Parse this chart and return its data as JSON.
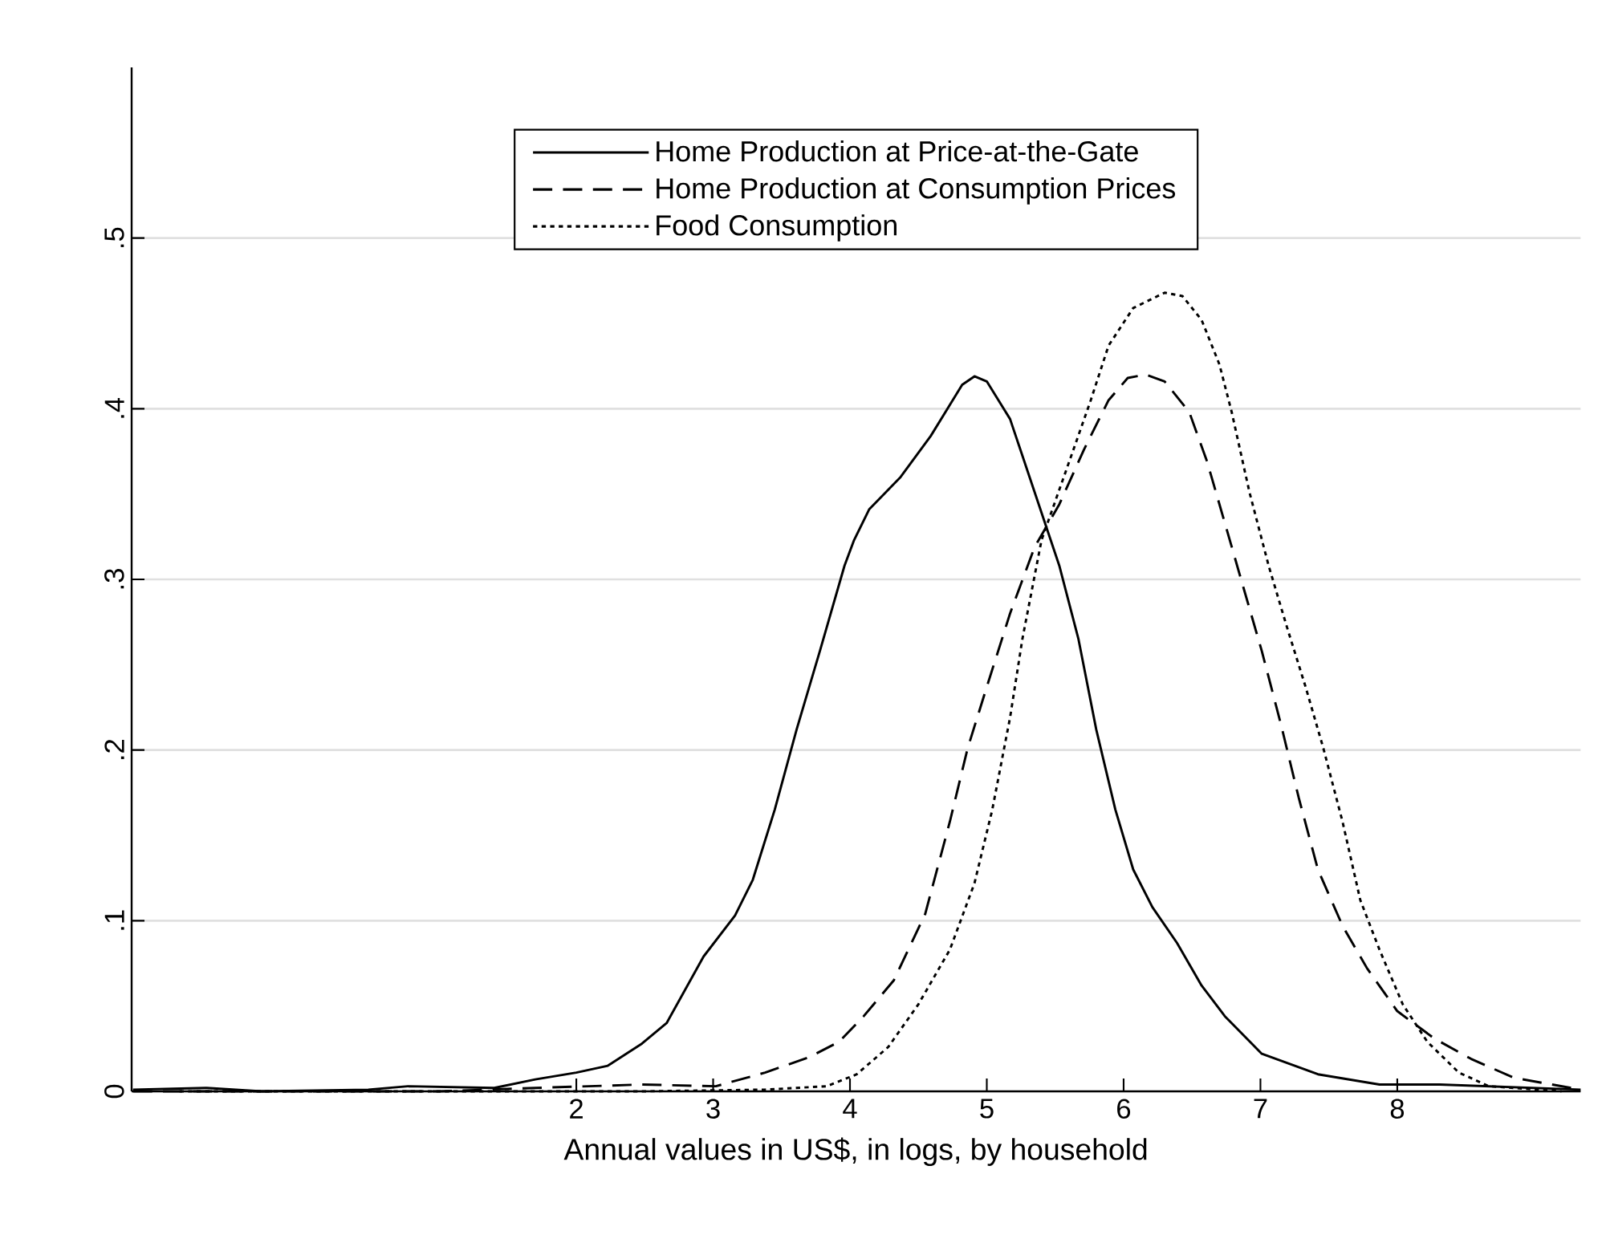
{
  "chart_data": {
    "type": "line",
    "xlabel": "Annual values in US$, in logs, by household",
    "xlim": [
      -1.25,
      9.34
    ],
    "xticks": [
      2,
      3,
      4,
      5,
      6,
      7,
      8
    ],
    "ylim": [
      0,
      0.6
    ],
    "yticks": [
      0,
      {
        "value": 0.1,
        "label": ".1"
      },
      {
        "value": 0.2,
        "label": ".2"
      },
      {
        "value": 0.3,
        "label": ".3"
      },
      {
        "value": 0.4,
        "label": ".4"
      },
      {
        "value": 0.5,
        "label": ".5"
      }
    ],
    "grid": "y",
    "legend": "top",
    "marker": "none",
    "series": [
      {
        "name": "Home Production at Price-at-the-Gate",
        "color": "#000000",
        "line_style": "solid",
        "x": [
          -1.24,
          -0.7,
          -0.3,
          0.48,
          0.77,
          1.4,
          1.7,
          2.0,
          2.23,
          2.48,
          2.66,
          2.93,
          3.16,
          3.29,
          3.45,
          3.61,
          3.78,
          3.96,
          4.03,
          4.14,
          4.37,
          4.59,
          4.82,
          4.91,
          5.0,
          5.17,
          5.35,
          5.53,
          5.67,
          5.8,
          5.94,
          6.07,
          6.21,
          6.39,
          6.57,
          6.74,
          7.01,
          7.42,
          7.87,
          8.31,
          9.34
        ],
        "values": [
          0.001,
          0.002,
          0.0,
          0.001,
          0.003,
          0.002,
          0.007,
          0.011,
          0.015,
          0.028,
          0.04,
          0.079,
          0.103,
          0.124,
          0.165,
          0.212,
          0.258,
          0.308,
          0.323,
          0.341,
          0.36,
          0.384,
          0.414,
          0.419,
          0.416,
          0.394,
          0.351,
          0.308,
          0.265,
          0.212,
          0.165,
          0.13,
          0.108,
          0.087,
          0.062,
          0.044,
          0.022,
          0.01,
          0.004,
          0.004,
          0.001
        ]
      },
      {
        "name": "Home Production at Consumption Prices",
        "color": "#000000",
        "line_style": "dashed",
        "x": [
          -1.24,
          1.0,
          1.7,
          2.48,
          3.02,
          3.38,
          3.7,
          3.92,
          4.1,
          4.32,
          4.55,
          4.73,
          4.86,
          5.0,
          5.17,
          5.35,
          5.53,
          5.71,
          5.89,
          6.03,
          6.16,
          6.3,
          6.48,
          6.61,
          6.74,
          6.88,
          7.01,
          7.15,
          7.28,
          7.42,
          7.6,
          7.78,
          8.0,
          8.27,
          8.54,
          8.85,
          9.34
        ],
        "values": [
          0.0,
          0.0,
          0.002,
          0.004,
          0.003,
          0.011,
          0.02,
          0.029,
          0.044,
          0.065,
          0.104,
          0.158,
          0.201,
          0.237,
          0.28,
          0.319,
          0.344,
          0.376,
          0.405,
          0.418,
          0.42,
          0.416,
          0.398,
          0.369,
          0.333,
          0.294,
          0.258,
          0.215,
          0.172,
          0.13,
          0.097,
          0.072,
          0.047,
          0.031,
          0.019,
          0.008,
          0.001
        ]
      },
      {
        "name": "Food Consumption",
        "color": "#000000",
        "line_style": "dotted",
        "x": [
          -0.9,
          2.48,
          3.38,
          3.83,
          4.05,
          4.28,
          4.5,
          4.73,
          4.91,
          5.04,
          5.17,
          5.26,
          5.4,
          5.62,
          5.76,
          5.89,
          6.07,
          6.3,
          6.43,
          6.57,
          6.7,
          6.79,
          6.92,
          7.06,
          7.19,
          7.33,
          7.46,
          7.6,
          7.73,
          7.87,
          8.04,
          8.22,
          8.45,
          8.67,
          9.2
        ],
        "values": [
          0.0,
          0.0,
          0.001,
          0.003,
          0.01,
          0.026,
          0.051,
          0.083,
          0.122,
          0.165,
          0.219,
          0.265,
          0.323,
          0.373,
          0.405,
          0.437,
          0.459,
          0.468,
          0.466,
          0.452,
          0.426,
          0.398,
          0.351,
          0.308,
          0.273,
          0.237,
          0.201,
          0.158,
          0.112,
          0.083,
          0.051,
          0.029,
          0.011,
          0.003,
          0.0
        ]
      }
    ]
  }
}
